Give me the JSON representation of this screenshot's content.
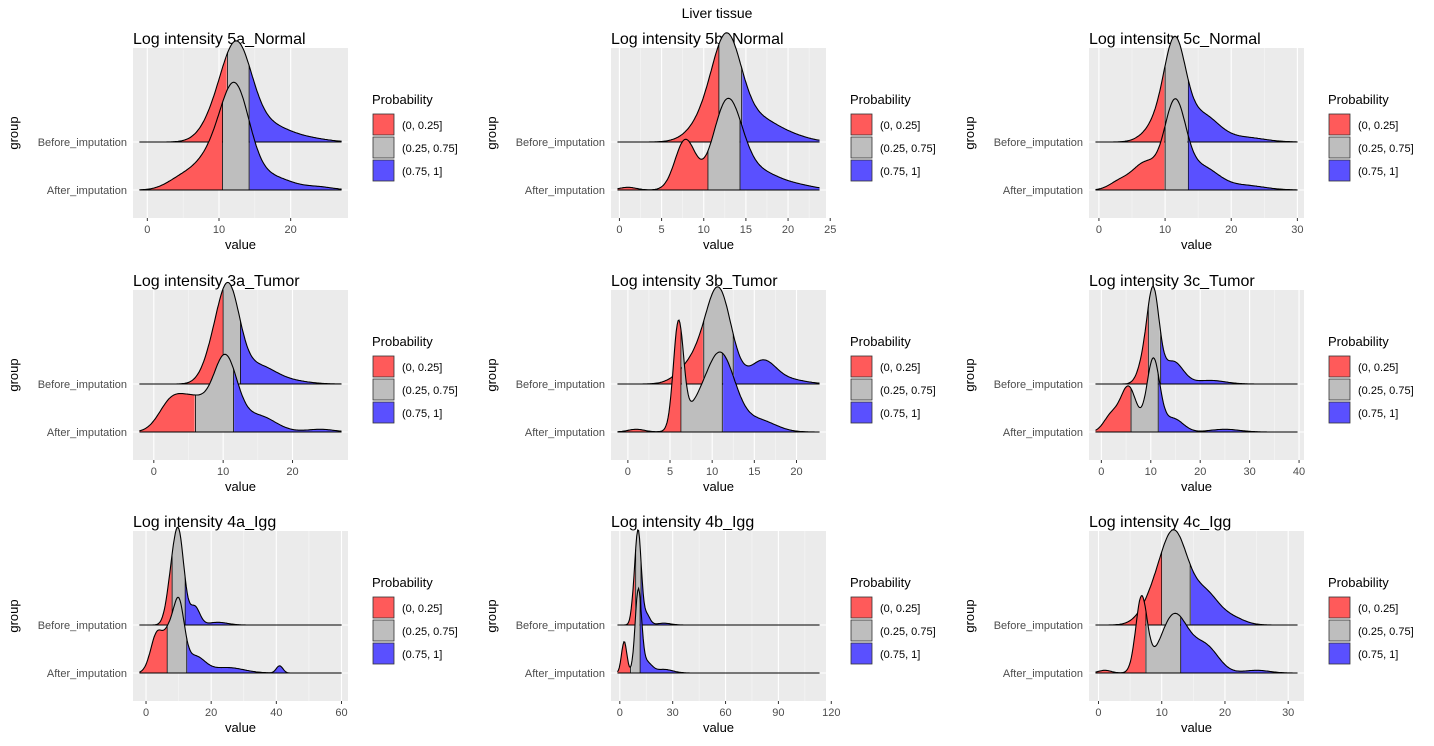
{
  "figure_title": "Liver tissue",
  "legend": {
    "title": "Probability",
    "items": [
      {
        "label": "(0, 0.25]",
        "color": "#ff5a5a"
      },
      {
        "label": "(0.25, 0.75]",
        "color": "#bebebe"
      },
      {
        "label": "(0.75, 1]",
        "color": "#5a50ff"
      }
    ]
  },
  "chart_data": [
    {
      "type": "area",
      "title": "Log intensity 5a_Normal",
      "xlabel": "value",
      "ylabel": "group",
      "categories": [
        "Before_imputation",
        "After_imputation"
      ],
      "xlim": [
        -2,
        28
      ],
      "xticks": [
        0,
        10,
        20
      ],
      "series": [
        {
          "name": "Before_imputation",
          "q25": 11.2,
          "q75": 14.2,
          "peaks": [
            [
              12.5,
              2.1,
              1.0
            ],
            [
              9.5,
              2.0,
              0.2
            ],
            [
              17.0,
              3.0,
              0.18
            ],
            [
              23.0,
              2.5,
              0.03
            ]
          ]
        },
        {
          "name": "After_imputation",
          "q25": 10.5,
          "q75": 14.2,
          "peaks": [
            [
              12.3,
              2.0,
              1.0
            ],
            [
              9.0,
              2.5,
              0.35
            ],
            [
              4.5,
              2.0,
              0.1
            ],
            [
              17.0,
              3.0,
              0.15
            ],
            [
              24.0,
              2.0,
              0.03
            ]
          ]
        }
      ]
    },
    {
      "type": "area",
      "title": "Log intensity 5b_Normal",
      "xlabel": "value",
      "ylabel": "group",
      "categories": [
        "Before_imputation",
        "After_imputation"
      ],
      "xlim": [
        -1,
        24.5
      ],
      "xticks": [
        0,
        5,
        10,
        15,
        20,
        25
      ],
      "series": [
        {
          "name": "Before_imputation",
          "q25": 11.8,
          "q75": 14.5,
          "peaks": [
            [
              12.8,
              1.7,
              1.0
            ],
            [
              10.5,
              2.0,
              0.25
            ],
            [
              16.5,
              2.5,
              0.25
            ],
            [
              21.0,
              2.0,
              0.04
            ]
          ]
        },
        {
          "name": "After_imputation",
          "q25": 10.5,
          "q75": 14.3,
          "peaks": [
            [
              12.8,
              1.7,
              0.95
            ],
            [
              7.8,
              1.2,
              0.55
            ],
            [
              16.5,
              2.5,
              0.2
            ],
            [
              21.5,
              2.0,
              0.04
            ],
            [
              1.0,
              1.0,
              0.03
            ]
          ]
        }
      ]
    },
    {
      "type": "area",
      "title": "Log intensity 5c_Normal",
      "xlabel": "value",
      "ylabel": "group",
      "categories": [
        "Before_imputation",
        "After_imputation"
      ],
      "xlim": [
        -1.5,
        31
      ],
      "xticks": [
        0,
        10,
        20,
        30
      ],
      "series": [
        {
          "name": "Before_imputation",
          "q25": 10.0,
          "q75": 13.5,
          "peaks": [
            [
              11.5,
              1.6,
              1.0
            ],
            [
              9.0,
              2.0,
              0.2
            ],
            [
              15.5,
              2.5,
              0.3
            ],
            [
              22.0,
              3.0,
              0.05
            ]
          ]
        },
        {
          "name": "After_imputation",
          "q25": 10.0,
          "q75": 13.5,
          "peaks": [
            [
              11.5,
              1.6,
              0.92
            ],
            [
              7.0,
              2.0,
              0.3
            ],
            [
              3.0,
              1.5,
              0.08
            ],
            [
              15.5,
              2.5,
              0.25
            ],
            [
              22.0,
              3.0,
              0.05
            ]
          ]
        }
      ]
    },
    {
      "type": "area",
      "title": "Log intensity 3a_Tumor",
      "xlabel": "value",
      "ylabel": "group",
      "categories": [
        "Before_imputation",
        "After_imputation"
      ],
      "xlim": [
        -3,
        28
      ],
      "xticks": [
        0,
        10,
        20
      ],
      "series": [
        {
          "name": "Before_imputation",
          "q25": 10.0,
          "q75": 12.5,
          "peaks": [
            [
              10.8,
              1.6,
              1.0
            ],
            [
              8.5,
              1.5,
              0.25
            ],
            [
              15.0,
              2.5,
              0.2
            ],
            [
              20.0,
              2.5,
              0.03
            ]
          ]
        },
        {
          "name": "After_imputation",
          "q25": 6.0,
          "q75": 11.5,
          "peaks": [
            [
              10.3,
              1.7,
              0.8
            ],
            [
              2.5,
              1.8,
              0.32
            ],
            [
              6.0,
              2.0,
              0.33
            ],
            [
              15.0,
              2.5,
              0.18
            ],
            [
              24.0,
              2.0,
              0.03
            ]
          ]
        }
      ]
    },
    {
      "type": "area",
      "title": "Log intensity 3b_Tumor",
      "xlabel": "value",
      "ylabel": "group",
      "categories": [
        "Before_imputation",
        "After_imputation"
      ],
      "xlim": [
        -2,
        23.5
      ],
      "xticks": [
        0,
        5,
        10,
        15,
        20
      ],
      "series": [
        {
          "name": "Before_imputation",
          "q25": 9.0,
          "q75": 12.5,
          "peaks": [
            [
              10.8,
              1.5,
              1.0
            ],
            [
              8.0,
              1.8,
              0.25
            ],
            [
              16.0,
              1.5,
              0.25
            ],
            [
              19.0,
              2.0,
              0.05
            ]
          ]
        },
        {
          "name": "After_imputation",
          "q25": 6.3,
          "q75": 11.2,
          "peaks": [
            [
              6.0,
              0.6,
              1.15
            ],
            [
              11.0,
              1.7,
              0.85
            ],
            [
              8.0,
              1.5,
              0.2
            ],
            [
              15.5,
              2.0,
              0.13
            ],
            [
              1.0,
              1.0,
              0.03
            ]
          ]
        }
      ]
    },
    {
      "type": "area",
      "title": "Log intensity 3c_Tumor",
      "xlabel": "value",
      "ylabel": "group",
      "categories": [
        "Before_imputation",
        "After_imputation"
      ],
      "xlim": [
        -2.5,
        41
      ],
      "xticks": [
        0,
        10,
        20,
        30,
        40
      ],
      "series": [
        {
          "name": "Before_imputation",
          "q25": 9.5,
          "q75": 12.0,
          "peaks": [
            [
              10.5,
              1.2,
              1.0
            ],
            [
              8.5,
              1.2,
              0.2
            ],
            [
              14.5,
              2.0,
              0.25
            ],
            [
              22.0,
              3.0,
              0.04
            ]
          ]
        },
        {
          "name": "After_imputation",
          "q25": 6.0,
          "q75": 11.5,
          "peaks": [
            [
              10.5,
              1.3,
              0.8
            ],
            [
              5.5,
              1.6,
              0.5
            ],
            [
              2.0,
              1.5,
              0.18
            ],
            [
              14.5,
              2.0,
              0.15
            ],
            [
              25.0,
              3.0,
              0.03
            ]
          ]
        }
      ]
    },
    {
      "type": "area",
      "title": "Log intensity 4a_Igg",
      "xlabel": "value",
      "ylabel": "group",
      "categories": [
        "Before_imputation",
        "After_imputation"
      ],
      "xlim": [
        -4,
        62
      ],
      "xticks": [
        0,
        20,
        40,
        60
      ],
      "series": [
        {
          "name": "Before_imputation",
          "q25": 8.0,
          "q75": 12.0,
          "peaks": [
            [
              10.0,
              1.7,
              1.0
            ],
            [
              7.5,
              1.5,
              0.3
            ],
            [
              15.0,
              1.5,
              0.2
            ],
            [
              22.0,
              3.0,
              0.03
            ]
          ]
        },
        {
          "name": "After_imputation",
          "q25": 6.5,
          "q75": 12.5,
          "peaks": [
            [
              10.0,
              1.7,
              0.75
            ],
            [
              3.5,
              2.0,
              0.45
            ],
            [
              7.0,
              1.5,
              0.3
            ],
            [
              15.0,
              3.0,
              0.18
            ],
            [
              25.0,
              5.0,
              0.06
            ],
            [
              41.0,
              1.0,
              0.08
            ]
          ]
        }
      ]
    },
    {
      "type": "area",
      "title": "Log intensity 4b_Igg",
      "xlabel": "value",
      "ylabel": "group",
      "categories": [
        "Before_imputation",
        "After_imputation"
      ],
      "xlim": [
        -5,
        117
      ],
      "xticks": [
        0,
        30,
        60,
        90,
        120
      ],
      "series": [
        {
          "name": "Before_imputation",
          "q25": 9.0,
          "q75": 12.0,
          "peaks": [
            [
              10.5,
              1.7,
              1.0
            ],
            [
              8.0,
              1.5,
              0.2
            ],
            [
              15.0,
              2.0,
              0.12
            ],
            [
              25.0,
              4.0,
              0.02
            ]
          ]
        },
        {
          "name": "After_imputation",
          "q25": 6.0,
          "q75": 11.5,
          "peaks": [
            [
              10.5,
              1.8,
              0.9
            ],
            [
              2.5,
              1.5,
              0.35
            ],
            [
              15.0,
              3.0,
              0.12
            ],
            [
              25.0,
              5.0,
              0.04
            ]
          ]
        }
      ]
    },
    {
      "type": "area",
      "title": "Log intensity 4c_Igg",
      "xlabel": "value",
      "ylabel": "group",
      "categories": [
        "Before_imputation",
        "After_imputation"
      ],
      "xlim": [
        -1.5,
        32.5
      ],
      "xticks": [
        0,
        10,
        20,
        30
      ],
      "series": [
        {
          "name": "Before_imputation",
          "q25": 10.0,
          "q75": 14.5,
          "peaks": [
            [
              12.0,
              2.2,
              1.0
            ],
            [
              8.5,
              2.0,
              0.2
            ],
            [
              17.0,
              2.0,
              0.32
            ],
            [
              21.0,
              2.0,
              0.08
            ]
          ]
        },
        {
          "name": "After_imputation",
          "q25": 7.5,
          "q75": 13.0,
          "peaks": [
            [
              6.8,
              0.9,
              0.82
            ],
            [
              12.0,
              2.2,
              0.65
            ],
            [
              17.0,
              2.0,
              0.28
            ],
            [
              1.0,
              1.0,
              0.03
            ],
            [
              25.0,
              2.0,
              0.03
            ]
          ]
        }
      ]
    }
  ]
}
